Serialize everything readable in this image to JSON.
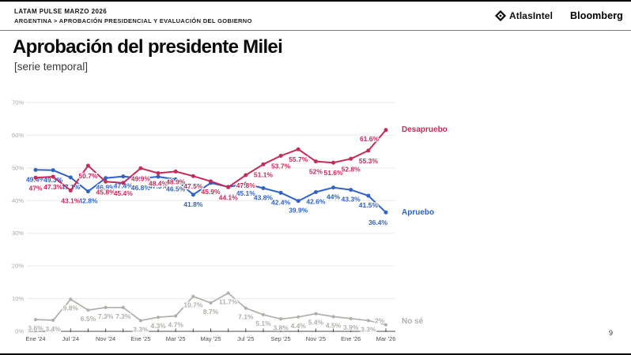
{
  "header": {
    "kicker": "LATAM PULSE MARZO 2026",
    "breadcrumb": "ARGENTINA > APROBACIÓN PRESIDENCIAL Y EVALUACIÓN DEL GOBIERNO",
    "logo_atlasintel": "AtlasIntel",
    "logo_bloomberg": "Bloomberg"
  },
  "title": "Aprobación del presidente Milei",
  "subtitle": "[serie temporal]",
  "page_number": "9",
  "chart_data": {
    "type": "line",
    "title": "Aprobación del presidente Milei [serie temporal]",
    "xlabel": "",
    "ylabel": "",
    "ylim": [
      0,
      70
    ],
    "yticks": [
      0,
      10,
      20,
      30,
      40,
      50,
      60,
      70
    ],
    "grid": true,
    "legend_position": "end-of-line-right",
    "x_tick_labels": [
      "Ene '24",
      "Jul '24",
      "Nov '24",
      "Ene '25",
      "Mar '25",
      "May '25",
      "Jul '25",
      "Sep '25",
      "Nov '25",
      "Ene '26",
      "Mar '26"
    ],
    "points_per_labeled_tick": 2,
    "series": [
      {
        "name": "Desapruebo",
        "color": "#c62b58",
        "values": [
          47.0,
          47.3,
          43.1,
          50.7,
          45.8,
          45.4,
          49.9,
          48.4,
          48.9,
          47.5,
          45.9,
          44.1,
          47.8,
          51.1,
          53.7,
          55.7,
          52.0,
          51.6,
          52.8,
          55.3,
          61.6
        ]
      },
      {
        "name": "Apruebo",
        "color": "#2f63c5",
        "values": [
          49.4,
          49.3,
          47.1,
          42.8,
          46.9,
          47.4,
          46.8,
          47.3,
          46.5,
          41.8,
          45.4,
          44.2,
          45.1,
          43.8,
          42.4,
          39.9,
          42.6,
          44.0,
          43.3,
          41.5,
          36.4
        ]
      },
      {
        "name": "No sé",
        "color": "#b2afaa",
        "values": [
          3.6,
          3.4,
          9.8,
          6.5,
          7.3,
          7.3,
          3.3,
          4.3,
          4.7,
          10.7,
          8.7,
          11.7,
          7.1,
          5.1,
          3.8,
          4.4,
          5.4,
          4.5,
          3.9,
          3.3,
          2.0
        ]
      }
    ]
  }
}
